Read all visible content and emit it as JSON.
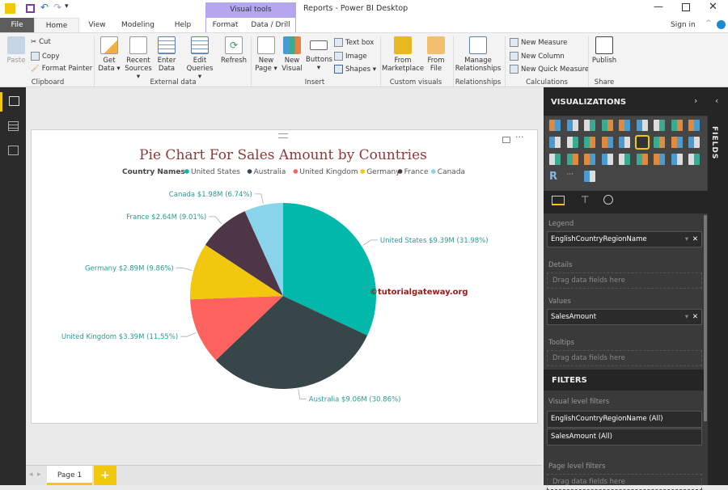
{
  "window": {
    "title": "Reports - Power BI Desktop",
    "context_tab_group": "Visual tools",
    "sign_in": "Sign in"
  },
  "tabs": [
    "File",
    "Home",
    "View",
    "Modeling",
    "Help",
    "Format",
    "Data / Drill"
  ],
  "ribbon": {
    "clipboard": {
      "paste": "Paste",
      "cut": "Cut",
      "copy": "Copy",
      "format_painter": "Format Painter",
      "group": "Clipboard"
    },
    "external_data": {
      "get_data": "Get Data ▾",
      "recent_sources": "Recent Sources ▾",
      "enter_data": "Enter Data",
      "edit_queries": "Edit Queries ▾",
      "refresh": "Refresh",
      "group": "External data"
    },
    "insert": {
      "new_page": "New Page ▾",
      "new_visual": "New Visual",
      "buttons": "Buttons ▾",
      "text_box": "Text box",
      "image": "Image",
      "shapes": "Shapes ▾",
      "group": "Insert"
    },
    "custom_visuals": {
      "from_marketplace": "From Marketplace",
      "from_file": "From File",
      "group": "Custom visuals"
    },
    "relationships": {
      "manage": "Manage Relationships",
      "group": "Relationships"
    },
    "calculations": {
      "new_measure": "New Measure",
      "new_column": "New Column",
      "new_quick_measure": "New Quick Measure",
      "group": "Calculations"
    },
    "share": {
      "publish": "Publish",
      "group": "Share"
    }
  },
  "chart_data": {
    "type": "pie",
    "title": "Pie Chart For Sales Amount by Countries",
    "legend_title": "Country Names",
    "legend_position": "top",
    "categories": [
      "United States",
      "Australia",
      "United Kingdom",
      "Germany",
      "France",
      "Canada"
    ],
    "values": [
      9.39,
      9.06,
      3.39,
      2.89,
      2.64,
      1.98
    ],
    "percents": [
      31.98,
      30.86,
      11.55,
      9.86,
      9.01,
      6.74
    ],
    "data_labels": [
      "United States $9.39M (31.98%)",
      "Australia $9.06M (30.86%)",
      "United Kingdom $3.39M (11.55%)",
      "Germany $2.89M (9.86%)",
      "France $2.64M (9.01%)",
      "Canada $1.98M (6.74%)"
    ],
    "colors": [
      "#01B8AA",
      "#374649",
      "#FD625E",
      "#F2C80F",
      "#4F3647",
      "#8AD4EB"
    ],
    "unit": "$M"
  },
  "watermark": "©tutorialgateway.org",
  "pages": {
    "current": "Page 1",
    "add": "+"
  },
  "visualizations": {
    "title": "VISUALIZATIONS",
    "selected": "pie-chart",
    "legend_label": "Legend",
    "legend_field": "EnglishCountryRegionName",
    "details_label": "Details",
    "details_placeholder": "Drag data fields here",
    "values_label": "Values",
    "values_field": "SalesAmount",
    "tooltips_label": "Tooltips",
    "tooltips_placeholder": "Drag data fields here"
  },
  "filters": {
    "title": "FILTERS",
    "visual_level": "Visual level filters",
    "items": [
      "EnglishCountryRegionName (All)",
      "SalesAmount (All)"
    ],
    "page_level": "Page level filters",
    "page_placeholder": "Drag data fields here"
  },
  "fields_pane": {
    "title": "FIELDS"
  }
}
